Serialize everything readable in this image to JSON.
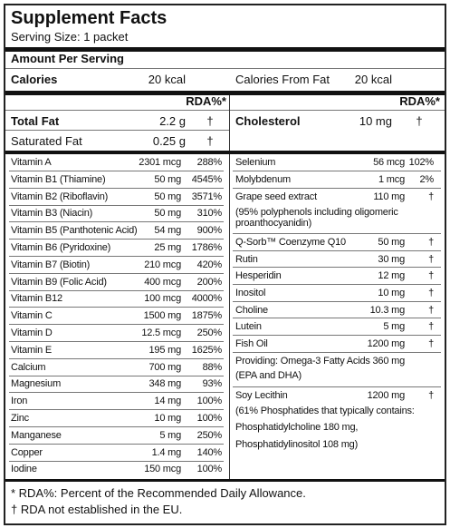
{
  "header": {
    "title": "Supplement Facts",
    "serving": "Serving Size: 1 packet"
  },
  "amount_per_serving": "Amount Per Serving",
  "calories": {
    "label": "Calories",
    "value": "20 kcal",
    "fat_label": "Calories From Fat",
    "fat_value": "20 kcal"
  },
  "rda_header": "RDA%*",
  "fats": {
    "left": [
      {
        "name": "Total Fat",
        "amount": "2.2 g",
        "rda": "†"
      },
      {
        "name": "Saturated Fat",
        "amount": "0.25 g",
        "rda": "†"
      }
    ],
    "right": [
      {
        "name": "Cholesterol",
        "amount": "10 mg",
        "rda": "†"
      }
    ]
  },
  "left": [
    {
      "name": "Vitamin A",
      "amount": "2301 mcg",
      "rda": "288%"
    },
    {
      "name": "Vitamin B1 (Thiamine)",
      "amount": "50 mg",
      "rda": "4545%"
    },
    {
      "name": "Vitamin B2 (Riboflavin)",
      "amount": "50 mg",
      "rda": "3571%"
    },
    {
      "name": "Vitamin B3 (Niacin)",
      "amount": "50 mg",
      "rda": "310%"
    },
    {
      "name": "Vitamin B5 (Panthotenic Acid)",
      "amount": "54 mg",
      "rda": "900%"
    },
    {
      "name": "Vitamin B6 (Pyridoxine)",
      "amount": "25 mg",
      "rda": "1786%"
    },
    {
      "name": "Vitamin B7 (Biotin)",
      "amount": "210 mcg",
      "rda": "420%"
    },
    {
      "name": "Vitamin B9 (Folic Acid)",
      "amount": "400 mcg",
      "rda": "200%"
    },
    {
      "name": "Vitamin B12",
      "amount": "100 mcg",
      "rda": "4000%"
    },
    {
      "name": "Vitamin C",
      "amount": "1500 mg",
      "rda": "1875%"
    },
    {
      "name": "Vitamin D",
      "amount": "12.5 mcg",
      "rda": "250%"
    },
    {
      "name": "Vitamin E",
      "amount": "195 mg",
      "rda": "1625%"
    },
    {
      "name": "Calcium",
      "amount": "700 mg",
      "rda": "88%"
    },
    {
      "name": "Magnesium",
      "amount": "348 mg",
      "rda": "93%"
    },
    {
      "name": "Iron",
      "amount": "14 mg",
      "rda": "100%"
    },
    {
      "name": "Zinc",
      "amount": "10 mg",
      "rda": "100%"
    },
    {
      "name": "Manganese",
      "amount": "5 mg",
      "rda": "250%"
    },
    {
      "name": "Copper",
      "amount": "1.4 mg",
      "rda": "140%"
    },
    {
      "name": "Iodine",
      "amount": "150 mcg",
      "rda": "100%"
    }
  ],
  "right": [
    {
      "name": "Selenium",
      "amount": "56 mcg",
      "rda": "102%"
    },
    {
      "name": "Molybdenum",
      "amount": "1 mcg",
      "rda": "2%"
    },
    {
      "name": "Grape seed extract",
      "amount": "110 mg",
      "rda": "†"
    },
    {
      "note": "(95% polyphenols including oligomeric proanthocyanidin)"
    },
    {
      "name": "Q-Sorb™ Coenzyme Q10",
      "amount": "50 mg",
      "rda": "†"
    },
    {
      "name": "Rutin",
      "amount": "30 mg",
      "rda": "†"
    },
    {
      "name": "Hesperidin",
      "amount": "12 mg",
      "rda": "†"
    },
    {
      "name": "Inositol",
      "amount": "10 mg",
      "rda": "†"
    },
    {
      "name": "Choline",
      "amount": "10.3 mg",
      "rda": "†"
    },
    {
      "name": "Lutein",
      "amount": "5 mg",
      "rda": "†"
    },
    {
      "name": "Fish Oil",
      "amount": "1200 mg",
      "rda": "†"
    },
    {
      "name": "Providing: Omega-3 Fatty Acids",
      "amount": "360 mg"
    },
    {
      "note": "(EPA and DHA)"
    },
    {
      "name": "Soy Lecithin",
      "amount": "1200 mg",
      "rda": "†"
    },
    {
      "note": "(61% Phosphatides that typically contains:"
    },
    {
      "note": "Phosphatidylcholine 180 mg,"
    },
    {
      "note": "Phosphatidylinositol 108 mg)"
    }
  ],
  "footnotes": [
    "* RDA%: Percent of the Recommended Daily Allowance.",
    "† RDA not established in the EU."
  ]
}
